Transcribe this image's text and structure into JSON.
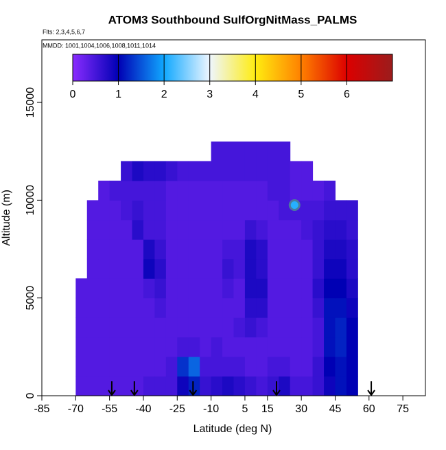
{
  "chart_data": {
    "type": "heatmap",
    "title": "ATOM3 Southbound SulfOrgNitMass_PALMS",
    "subtitles": [
      "Flts: 2,3,4,5,6,7",
      "MMDD: 1001,1004,1006,1008,1011,1014"
    ],
    "x_label": "Latitude (deg N)",
    "y_label": "Altitude (m)",
    "xlim": [
      -85,
      85
    ],
    "xticks": [
      -85,
      -70,
      -55,
      -40,
      -25,
      -10,
      5,
      15,
      30,
      45,
      60,
      75
    ],
    "ylim": [
      0,
      18200
    ],
    "yticks": [
      0,
      5000,
      10000,
      15000
    ],
    "clim": [
      0,
      7
    ],
    "cticks": [
      0,
      1,
      2,
      3,
      4,
      5,
      6
    ],
    "colorscale": [
      "#8a2cff",
      "#0000b4",
      "#10a8ff",
      "#eef6ff",
      "#ffec10",
      "#ff8000",
      "#dc0000",
      "#9b1c1c"
    ],
    "xbins": [
      -70,
      -65,
      -60,
      -55,
      -50,
      -45,
      -40,
      -35,
      -30,
      -25,
      -20,
      -15,
      -10,
      -5,
      0,
      5,
      10,
      15,
      20,
      25,
      30,
      35,
      40,
      45,
      50,
      55
    ],
    "ybins": [
      0,
      1000,
      2000,
      3000,
      4000,
      5000,
      6000,
      7000,
      8000,
      9000,
      10000,
      11000,
      12000,
      13000
    ],
    "z": [
      [
        0.4,
        0.4,
        0.4,
        0.4,
        0.4,
        0.4,
        0.5,
        0.5,
        0.5,
        0.9,
        1.2,
        0.6,
        0.7,
        0.8,
        0.7,
        0.6,
        0.5,
        0.6,
        0.8,
        0.5,
        0.5,
        0.6,
        0.9,
        1.1,
        1.0
      ],
      [
        0.4,
        0.4,
        0.4,
        0.4,
        0.4,
        0.4,
        0.4,
        0.4,
        0.5,
        1.3,
        1.6,
        0.5,
        0.5,
        0.5,
        0.5,
        0.4,
        0.4,
        0.5,
        0.5,
        0.4,
        0.4,
        0.6,
        1.0,
        1.1,
        1.0
      ],
      [
        0.4,
        0.4,
        0.4,
        0.4,
        0.4,
        0.4,
        0.4,
        0.4,
        0.4,
        0.5,
        0.5,
        0.4,
        0.5,
        0.4,
        0.4,
        0.4,
        0.4,
        0.4,
        0.4,
        0.4,
        0.4,
        0.5,
        1.1,
        1.2,
        1.0
      ],
      [
        0.4,
        0.4,
        0.4,
        0.4,
        0.4,
        0.4,
        0.4,
        0.4,
        0.4,
        0.4,
        0.4,
        0.4,
        0.4,
        0.4,
        0.5,
        0.6,
        0.5,
        0.4,
        0.4,
        0.4,
        0.4,
        0.5,
        1.1,
        1.2,
        1.0
      ],
      [
        0.4,
        0.4,
        0.4,
        0.4,
        0.4,
        0.4,
        0.4,
        0.5,
        0.4,
        0.4,
        0.4,
        0.4,
        0.4,
        0.4,
        0.4,
        0.7,
        0.7,
        0.4,
        0.4,
        0.4,
        0.4,
        0.6,
        1.1,
        1.1,
        0.9
      ],
      [
        0.4,
        0.4,
        0.4,
        0.4,
        0.4,
        0.4,
        0.5,
        0.6,
        0.4,
        0.4,
        0.4,
        0.4,
        0.4,
        0.5,
        0.4,
        0.8,
        0.8,
        0.4,
        0.4,
        0.4,
        0.4,
        0.7,
        1.0,
        1.0,
        0.8
      ],
      [
        null,
        0.4,
        0.4,
        0.4,
        0.4,
        0.4,
        0.9,
        0.7,
        0.4,
        0.4,
        0.4,
        0.4,
        0.4,
        0.6,
        0.5,
        0.8,
        0.7,
        0.4,
        0.4,
        0.4,
        0.4,
        0.6,
        0.9,
        0.9,
        0.7
      ],
      [
        null,
        0.4,
        0.4,
        0.4,
        0.4,
        0.4,
        0.8,
        0.6,
        0.4,
        0.4,
        0.4,
        0.4,
        0.4,
        0.5,
        0.5,
        0.8,
        0.7,
        0.4,
        0.4,
        0.4,
        0.4,
        0.6,
        0.8,
        0.8,
        0.7
      ],
      [
        null,
        0.4,
        0.4,
        0.4,
        0.4,
        0.7,
        0.5,
        0.5,
        0.4,
        0.4,
        0.4,
        0.4,
        0.4,
        0.4,
        0.4,
        0.6,
        0.5,
        0.4,
        0.4,
        0.4,
        0.5,
        0.6,
        0.7,
        0.7,
        0.6
      ],
      [
        null,
        0.4,
        0.4,
        0.4,
        0.5,
        0.6,
        0.5,
        0.5,
        0.4,
        0.4,
        0.4,
        0.4,
        0.4,
        0.4,
        0.4,
        0.4,
        0.4,
        0.4,
        0.5,
        0.5,
        0.5,
        0.5,
        0.6,
        0.6,
        0.6
      ],
      [
        null,
        null,
        0.4,
        0.5,
        0.5,
        0.5,
        0.5,
        0.5,
        0.4,
        0.4,
        0.4,
        0.4,
        0.4,
        0.4,
        0.4,
        0.4,
        0.4,
        0.5,
        0.5,
        0.4,
        0.4,
        0.4,
        0.5,
        null,
        null
      ],
      [
        null,
        null,
        null,
        null,
        0.6,
        0.8,
        0.7,
        0.7,
        0.6,
        0.5,
        0.5,
        0.5,
        0.5,
        0.5,
        0.5,
        0.5,
        0.5,
        0.5,
        0.5,
        0.4,
        0.4,
        null,
        null,
        null,
        null
      ],
      [
        null,
        null,
        null,
        null,
        null,
        null,
        null,
        null,
        null,
        null,
        null,
        null,
        0.5,
        0.5,
        0.5,
        0.5,
        0.5,
        0.5,
        0.5,
        null,
        null,
        null,
        null,
        null,
        null
      ]
    ],
    "points": {
      "x": [
        27
      ],
      "y": [
        9750
      ],
      "values": [
        2.1
      ]
    },
    "markers_x": [
      -54,
      -44,
      -18,
      19,
      61
    ]
  }
}
